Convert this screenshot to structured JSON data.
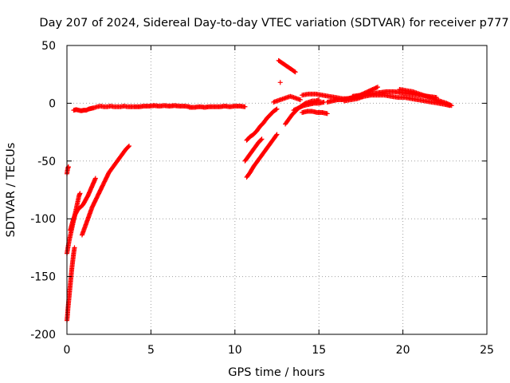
{
  "chart_data": {
    "type": "scatter",
    "title": "Day 207 of 2024, Sidereal Day-to-day VTEC variation (SDTVAR) for receiver p777",
    "xlabel": "GPS time / hours",
    "ylabel": "SDTVAR / TECUs",
    "xlim": [
      0,
      25
    ],
    "ylim": [
      -200,
      50
    ],
    "xticks": [
      0,
      5,
      10,
      15,
      20,
      25
    ],
    "yticks": [
      -200,
      -150,
      -100,
      -50,
      0,
      50
    ],
    "xtick_labels": [
      "0",
      "5",
      "10",
      "15",
      "20",
      "25"
    ],
    "ytick_labels": [
      "-200",
      "-150",
      "-100",
      "-50",
      "0",
      "50"
    ],
    "grid": true,
    "marker": "+",
    "color": "#ff0000",
    "series": [
      {
        "name": "arc-flat-a",
        "x": [
          0.4,
          0.55,
          0.7,
          0.85,
          1.0,
          1.15,
          1.3,
          1.45,
          1.6,
          1.8,
          2.0,
          2.2,
          2.4,
          2.6,
          2.8,
          3.0,
          3.2,
          3.4,
          3.6,
          3.8
        ],
        "y": [
          -6,
          -5.5,
          -6,
          -6.5,
          -6,
          -6,
          -5,
          -4.5,
          -4,
          -3,
          -2.5,
          -3,
          -3,
          -2.5,
          -3,
          -3,
          -3,
          -2.5,
          -3,
          -3
        ]
      },
      {
        "name": "arc-flat-b",
        "x": [
          3.8,
          4.0,
          4.3,
          4.6,
          4.9,
          5.2,
          5.5,
          5.8,
          6.1,
          6.4,
          6.7,
          7.0,
          7.3
        ],
        "y": [
          -3,
          -3,
          -3,
          -2.5,
          -2.5,
          -2,
          -2.5,
          -2,
          -2.5,
          -2,
          -2.5,
          -2.5,
          -3
        ]
      },
      {
        "name": "arc-flat-c",
        "x": [
          7.3,
          7.6,
          7.9,
          8.2,
          8.5,
          8.8,
          9.1,
          9.4,
          9.7,
          10.0,
          10.3,
          10.6
        ],
        "y": [
          -3.5,
          -3.5,
          -3,
          -3.5,
          -3,
          -3,
          -3,
          -2.5,
          -3,
          -2.5,
          -2.5,
          -3
        ]
      },
      {
        "name": "arc-rise-a",
        "x": [
          0.0,
          0.06,
          0.12,
          0.18,
          0.24,
          0.3,
          0.36,
          0.42,
          0.48,
          0.54,
          0.6,
          0.66,
          0.72,
          0.78
        ],
        "y": [
          -130,
          -125,
          -120,
          -116,
          -112,
          -108,
          -104,
          -100,
          -96,
          -92,
          -88,
          -84,
          -80,
          -78
        ]
      },
      {
        "name": "arc-rise-b",
        "x": [
          0.0,
          0.03,
          0.06,
          0.1,
          0.14,
          0.18,
          0.22,
          0.26,
          0.3,
          0.35,
          0.4,
          0.45
        ],
        "y": [
          -188,
          -184,
          -178,
          -172,
          -166,
          -160,
          -154,
          -148,
          -142,
          -136,
          -130,
          -125
        ]
      },
      {
        "name": "arc-rise-c",
        "x": [
          0.2,
          0.35,
          0.5,
          0.65,
          0.8,
          0.95,
          1.1,
          1.25,
          1.4,
          1.55,
          1.7
        ],
        "y": [
          -110,
          -102,
          -96,
          -92,
          -90,
          -88,
          -84,
          -80,
          -75,
          -70,
          -65
        ]
      },
      {
        "name": "arc-rise-d",
        "x": [
          0.9,
          1.1,
          1.3,
          1.5,
          1.7,
          1.9,
          2.1,
          2.3,
          2.5,
          2.7,
          2.9,
          3.1,
          3.3,
          3.5,
          3.7
        ],
        "y": [
          -114,
          -106,
          -98,
          -90,
          -84,
          -78,
          -72,
          -66,
          -60,
          -56,
          -52,
          -48,
          -44,
          -40,
          -37
        ]
      },
      {
        "name": "arc-rise-e",
        "x": [
          0.0,
          0.03,
          0.06,
          0.09
        ],
        "y": [
          -61,
          -58,
          -56,
          -55
        ]
      },
      {
        "name": "arc-rise-f",
        "x": [
          10.7,
          10.9,
          11.1,
          11.3,
          11.5,
          11.7,
          11.9,
          12.1,
          12.3,
          12.5
        ],
        "y": [
          -64,
          -60,
          -55,
          -51,
          -47,
          -43,
          -39,
          -35,
          -31,
          -27
        ]
      },
      {
        "name": "arc-rise-g",
        "x": [
          10.6,
          10.8,
          11.0,
          11.2,
          11.4,
          11.6
        ],
        "y": [
          -50,
          -46,
          -42,
          -38,
          -34,
          -31
        ]
      },
      {
        "name": "arc-rise-h",
        "x": [
          10.7,
          10.9,
          11.1,
          11.3,
          11.5,
          11.7,
          11.9,
          12.1,
          12.3,
          12.5
        ],
        "y": [
          -32,
          -29,
          -27,
          -24,
          -20,
          -17,
          -13,
          -10,
          -7,
          -5
        ]
      },
      {
        "name": "arc-jump",
        "x": [
          12.6,
          12.8,
          13.0,
          13.2,
          13.4,
          13.6
        ],
        "y": [
          37,
          35,
          33,
          31,
          29,
          27
        ]
      },
      {
        "name": "arc-jump-lone",
        "x": [
          12.7
        ],
        "y": [
          18
        ]
      },
      {
        "name": "arc-up-i",
        "x": [
          12.3,
          12.5,
          12.7,
          12.9,
          13.1,
          13.3,
          13.5,
          13.7,
          13.9
        ],
        "y": [
          1,
          2,
          3,
          4,
          5,
          6,
          5,
          4,
          3
        ]
      },
      {
        "name": "arc-up-j",
        "x": [
          13.0,
          13.2,
          13.4,
          13.6,
          13.8,
          14.0,
          14.2,
          14.4,
          14.6,
          14.8,
          15.0
        ],
        "y": [
          -18,
          -14,
          -10,
          -7,
          -4,
          -2,
          0,
          1,
          2,
          2,
          3
        ]
      },
      {
        "name": "arc-up-k",
        "x": [
          13.5,
          13.8,
          14.1,
          14.4,
          14.7,
          15.0,
          15.3
        ],
        "y": [
          -6,
          -4,
          -2,
          -1,
          0,
          0,
          1
        ]
      },
      {
        "name": "arc-low-l",
        "x": [
          14.0,
          14.3,
          14.6,
          14.9,
          15.2,
          15.5
        ],
        "y": [
          -8,
          -7,
          -7,
          -8,
          -8,
          -9
        ]
      },
      {
        "name": "arc-band-m",
        "x": [
          14.0,
          14.4,
          14.8,
          15.2,
          15.6,
          16.0,
          16.4,
          16.8,
          17.2,
          17.6
        ],
        "y": [
          7,
          8,
          8,
          7,
          6,
          5,
          4,
          4,
          5,
          6
        ]
      },
      {
        "name": "arc-band-n",
        "x": [
          15.5,
          15.8,
          16.1,
          16.4,
          16.7,
          17.0,
          17.3,
          17.6,
          17.9,
          18.2,
          18.5
        ],
        "y": [
          1,
          2,
          3,
          3,
          4,
          5,
          6,
          8,
          10,
          12,
          14
        ]
      },
      {
        "name": "arc-band-o",
        "x": [
          16.5,
          16.9,
          17.3,
          17.7,
          18.1,
          18.5,
          18.9,
          19.3,
          19.7,
          20.1,
          20.5,
          20.9,
          21.3,
          21.7,
          22.1,
          22.5,
          22.8
        ],
        "y": [
          2,
          3,
          4,
          6,
          7,
          7,
          7,
          6,
          5,
          5,
          4,
          3,
          2,
          1,
          0,
          -1,
          -2
        ]
      },
      {
        "name": "arc-band-p",
        "x": [
          17.0,
          17.5,
          18.0,
          18.5,
          19.0,
          19.5,
          20.0,
          20.5,
          21.0,
          21.5,
          22.0
        ],
        "y": [
          6,
          7,
          8,
          9,
          10,
          10,
          9,
          8,
          7,
          6,
          5
        ]
      },
      {
        "name": "arc-band-q",
        "x": [
          19.8,
          20.2,
          20.6,
          21.0,
          21.4,
          21.8,
          22.2,
          22.6,
          22.9
        ],
        "y": [
          12,
          11,
          10,
          8,
          6,
          4,
          2,
          0,
          -2
        ]
      }
    ]
  }
}
